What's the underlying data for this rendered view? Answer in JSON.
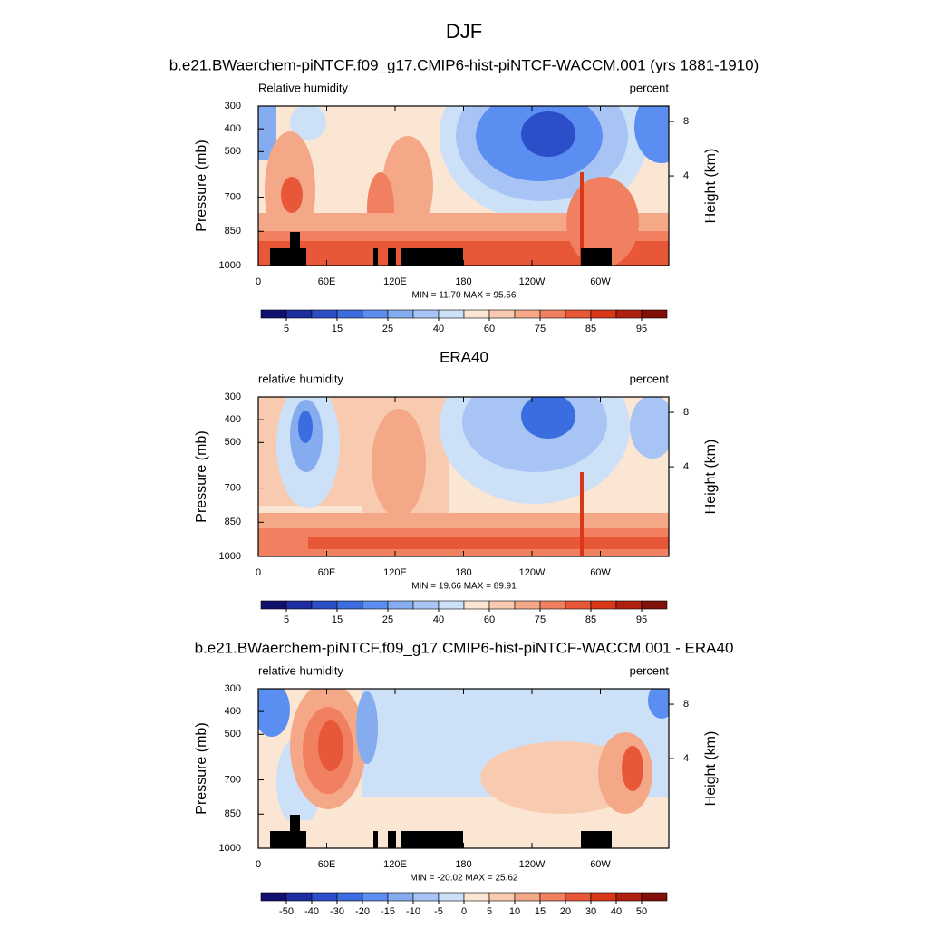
{
  "title": "DJF",
  "chart_data": [
    {
      "type": "contour",
      "title": "b.e21.BWaerchem-piNTCF.f09_g17.CMIP6-hist-piNTCF-WACCM.001 (yrs 1881-1910)",
      "left_label": "Relative humidity",
      "right_label": "percent",
      "y_label": "Pressure (mb)",
      "y2_label": "Height (km)",
      "stats": "MIN =  11.70  MAX =  95.56",
      "xlim": [
        0,
        360
      ],
      "xticks": [
        0,
        {
          "value": 60,
          "label": "60E"
        },
        {
          "value": 120,
          "label": "120E"
        },
        180,
        {
          "value": 240,
          "label": "120W"
        },
        {
          "value": 300,
          "label": "60W"
        }
      ],
      "ylim": [
        1000,
        300
      ],
      "yticks": [
        300,
        400,
        500,
        700,
        850,
        1000
      ],
      "y2ticks": [
        4,
        8
      ],
      "colorbar": {
        "colors": [
          "#10106e",
          "#1c2ea0",
          "#2c4ec8",
          "#3a6ee0",
          "#5a8ef0",
          "#86acf0",
          "#a8c4f4",
          "#cce0f8",
          "#fbe6d4",
          "#f8cbb0",
          "#f4a888",
          "#f08060",
          "#e85838",
          "#d83818",
          "#b02010",
          "#801008"
        ],
        "ticks": [
          5,
          15,
          25,
          40,
          60,
          75,
          85,
          95
        ]
      }
    },
    {
      "type": "contour",
      "title": "ERA40",
      "left_label": "relative humidity",
      "right_label": "percent",
      "y_label": "Pressure (mb)",
      "y2_label": "Height (km)",
      "stats": "MIN =  19.66  MAX =  89.91",
      "xlim": [
        0,
        360
      ],
      "xticks": [
        0,
        {
          "value": 60,
          "label": "60E"
        },
        {
          "value": 120,
          "label": "120E"
        },
        180,
        {
          "value": 240,
          "label": "120W"
        },
        {
          "value": 300,
          "label": "60W"
        }
      ],
      "ylim": [
        1000,
        300
      ],
      "yticks": [
        300,
        400,
        500,
        700,
        850,
        1000
      ],
      "y2ticks": [
        4,
        8
      ],
      "colorbar": {
        "colors": [
          "#10106e",
          "#1c2ea0",
          "#2c4ec8",
          "#3a6ee0",
          "#5a8ef0",
          "#86acf0",
          "#a8c4f4",
          "#cce0f8",
          "#fbe6d4",
          "#f8cbb0",
          "#f4a888",
          "#f08060",
          "#e85838",
          "#d83818",
          "#b02010",
          "#801008"
        ],
        "ticks": [
          5,
          15,
          25,
          40,
          60,
          75,
          85,
          95
        ]
      }
    },
    {
      "type": "contour",
      "title": "b.e21.BWaerchem-piNTCF.f09_g17.CMIP6-hist-piNTCF-WACCM.001 - ERA40",
      "left_label": "relative humidity",
      "right_label": "percent",
      "y_label": "Pressure (mb)",
      "y2_label": "Height (km)",
      "stats": "MIN = -20.02  MAX =  25.62",
      "xlim": [
        0,
        360
      ],
      "xticks": [
        0,
        {
          "value": 60,
          "label": "60E"
        },
        {
          "value": 120,
          "label": "120E"
        },
        180,
        {
          "value": 240,
          "label": "120W"
        },
        {
          "value": 300,
          "label": "60W"
        }
      ],
      "ylim": [
        1000,
        300
      ],
      "yticks": [
        300,
        400,
        500,
        700,
        850,
        1000
      ],
      "y2ticks": [
        4,
        8
      ],
      "colorbar": {
        "colors": [
          "#10106e",
          "#1c2ea0",
          "#2c4ec8",
          "#3a6ee0",
          "#5a8ef0",
          "#86acf0",
          "#a8c4f4",
          "#cce0f8",
          "#fbe6d4",
          "#f8cbb0",
          "#f4a888",
          "#f08060",
          "#e85838",
          "#d83818",
          "#b02010",
          "#801008"
        ],
        "ticks": [
          -50,
          -40,
          -30,
          -20,
          -15,
          -10,
          -5,
          0,
          5,
          10,
          15,
          20,
          30,
          40,
          50
        ]
      }
    }
  ]
}
